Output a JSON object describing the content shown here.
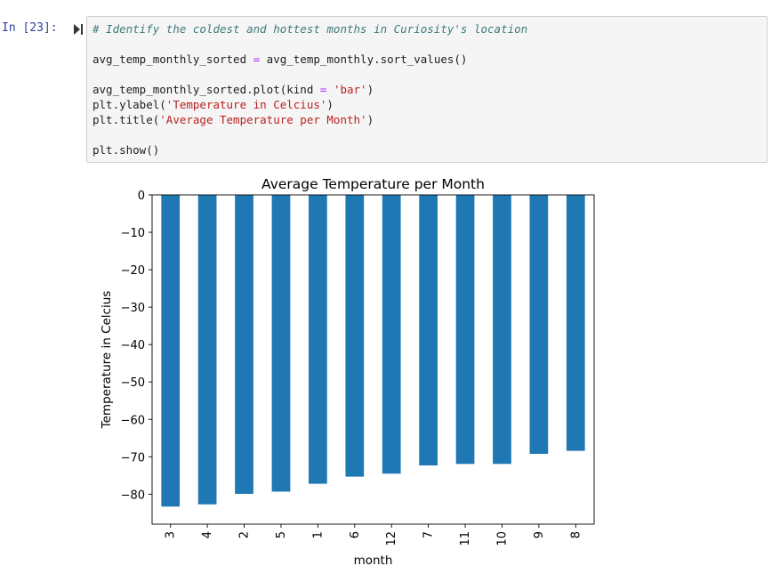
{
  "cell": {
    "prompt": "In [23]:",
    "code_lines": [
      [
        {
          "t": "# Identify the coldest and hottest months in Curiosity's location",
          "c": "comment"
        }
      ],
      [],
      [
        {
          "t": "avg_temp_monthly_sorted ",
          "c": ""
        },
        {
          "t": "=",
          "c": "op"
        },
        {
          "t": " avg_temp_monthly.sort_values()",
          "c": ""
        }
      ],
      [],
      [
        {
          "t": "avg_temp_monthly_sorted.plot(kind ",
          "c": ""
        },
        {
          "t": "=",
          "c": "op"
        },
        {
          "t": " ",
          "c": ""
        },
        {
          "t": "'bar'",
          "c": "str"
        },
        {
          "t": ")",
          "c": ""
        }
      ],
      [
        {
          "t": "plt.ylabel(",
          "c": ""
        },
        {
          "t": "'Temperature in Celcius'",
          "c": "str"
        },
        {
          "t": ")",
          "c": ""
        }
      ],
      [
        {
          "t": "plt.title(",
          "c": ""
        },
        {
          "t": "'Average Temperature per Month'",
          "c": "str"
        },
        {
          "t": ")",
          "c": ""
        }
      ],
      [],
      [
        {
          "t": "plt.show()",
          "c": ""
        }
      ]
    ]
  },
  "chart_data": {
    "type": "bar",
    "title": "Average Temperature per Month",
    "xlabel": "month",
    "ylabel": "Temperature in Celcius",
    "categories": [
      "3",
      "4",
      "2",
      "5",
      "1",
      "6",
      "12",
      "7",
      "11",
      "10",
      "9",
      "8"
    ],
    "values": [
      -83.3,
      -82.7,
      -79.9,
      -79.3,
      -77.2,
      -75.3,
      -74.5,
      -72.3,
      -71.9,
      -71.9,
      -69.2,
      -68.4
    ],
    "ylim": [
      -88,
      0
    ],
    "yticks": [
      0,
      -10,
      -20,
      -30,
      -40,
      -50,
      -60,
      -70,
      -80
    ],
    "ytick_labels": [
      "0",
      "−10",
      "−20",
      "−30",
      "−40",
      "−50",
      "−60",
      "−70",
      "−80"
    ],
    "bar_color": "#1f77b4",
    "grid": false,
    "legend": "none"
  },
  "colors": {
    "prompt": "#303f9f",
    "comment": "#3d7a7a",
    "operator": "#aa22ff",
    "string": "#ba2121"
  }
}
